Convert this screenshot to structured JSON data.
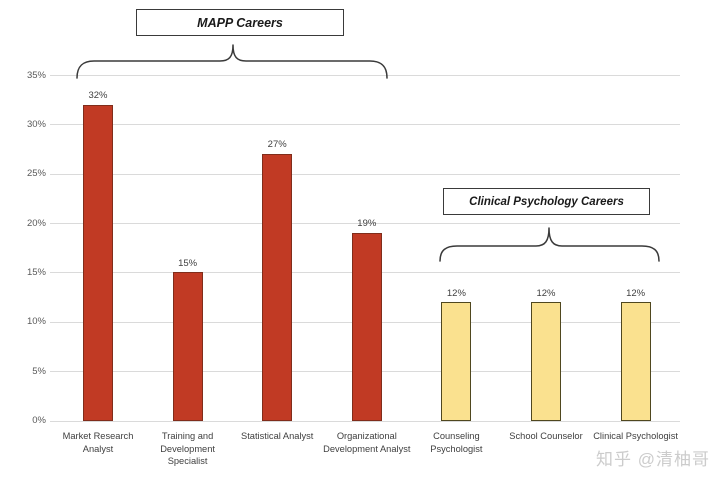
{
  "watermark": {
    "text": "知乎 @清柚哥"
  },
  "chart_data": {
    "type": "bar",
    "title": "",
    "xlabel": "",
    "ylabel": "",
    "grid": true,
    "ylim": [
      0,
      35
    ],
    "categories": [
      "Market Research Analyst",
      "Training and Development Specialist",
      "Statistical Analyst",
      "Organizational Development Analyst",
      "Counseling Psychologist",
      "School Counselor",
      "Clinical Psychologist"
    ],
    "values": [
      32,
      15,
      27,
      19,
      12,
      12,
      12
    ],
    "data_labels": [
      "32%",
      "15%",
      "27%",
      "19%",
      "12%",
      "12%",
      "12%"
    ],
    "yticks": [
      {
        "value": 0,
        "label": "0%"
      },
      {
        "value": 5,
        "label": "5%"
      },
      {
        "value": 10,
        "label": "10%"
      },
      {
        "value": 15,
        "label": "15%"
      },
      {
        "value": 20,
        "label": "20%"
      },
      {
        "value": 25,
        "label": "25%"
      },
      {
        "value": 30,
        "label": "30%"
      },
      {
        "value": 35,
        "label": "35%"
      }
    ],
    "groups": [
      {
        "label": "MAPP Careers",
        "category_start": 0,
        "category_end": 3,
        "bar_fill": "#c13a24",
        "bar_border": "#802d1b"
      },
      {
        "label": "Clinical Psychology Careers",
        "category_start": 4,
        "category_end": 6,
        "bar_fill": "#fae18f",
        "bar_border": "#4f471f"
      }
    ],
    "bar_fills": [
      "#c13a24",
      "#c13a24",
      "#c13a24",
      "#c13a24",
      "#fae18f",
      "#fae18f",
      "#fae18f"
    ],
    "bar_borders": [
      "#802d1b",
      "#802d1b",
      "#802d1b",
      "#802d1b",
      "#4f471f",
      "#4f471f",
      "#4f471f"
    ],
    "gridline_color": "#dadada",
    "legend": null
  }
}
